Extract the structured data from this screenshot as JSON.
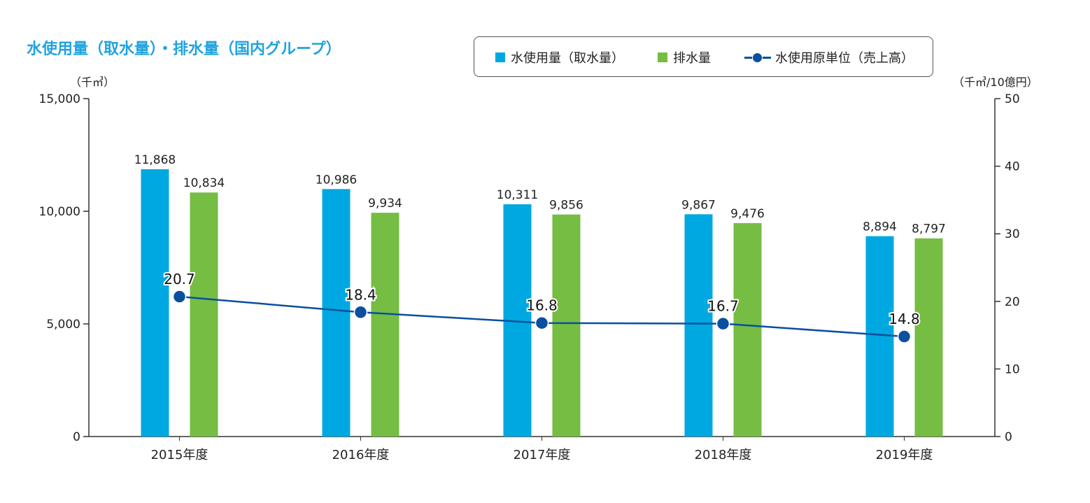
{
  "colors": {
    "title": "#1fa3e0",
    "water_use_bar": "#00a8e1",
    "discharge_bar": "#76bd43",
    "intensity_line": "#0a4fa0",
    "axis": "#333333"
  },
  "legend": {
    "water_use": "水使用量（取水量）",
    "discharge": "排水量",
    "intensity": "水使用原単位（売上高）"
  },
  "chart_data": {
    "type": "bar",
    "title": "水使用量（取水量）・排水量（国内グループ）",
    "y_left_label": "（千㎥）",
    "y_right_label": "（千㎥/10億円）",
    "categories": [
      "2015年度",
      "2016年度",
      "2017年度",
      "2018年度",
      "2019年度"
    ],
    "ylim_left": [
      0,
      15000
    ],
    "ylim_right": [
      0,
      50
    ],
    "yticks_left": [
      "0",
      "5,000",
      "10,000",
      "15,000"
    ],
    "yticks_right": [
      "0",
      "10",
      "20",
      "30",
      "40",
      "50"
    ],
    "series": [
      {
        "name": "水使用量（取水量）",
        "type": "bar",
        "axis": "left",
        "values": [
          11868,
          10986,
          10311,
          9867,
          8894
        ],
        "labels": [
          "11,868",
          "10,986",
          "10,311",
          "9,867",
          "8,894"
        ]
      },
      {
        "name": "排水量",
        "type": "bar",
        "axis": "left",
        "values": [
          10834,
          9934,
          9856,
          9476,
          8797
        ],
        "labels": [
          "10,834",
          "9,934",
          "9,856",
          "9,476",
          "8,797"
        ]
      },
      {
        "name": "水使用原単位（売上高）",
        "type": "line",
        "axis": "right",
        "values": [
          20.7,
          18.4,
          16.8,
          16.7,
          14.8
        ],
        "labels": [
          "20.7",
          "18.4",
          "16.8",
          "16.7",
          "14.8"
        ]
      }
    ],
    "grid": false,
    "legend_position": "top-right"
  }
}
